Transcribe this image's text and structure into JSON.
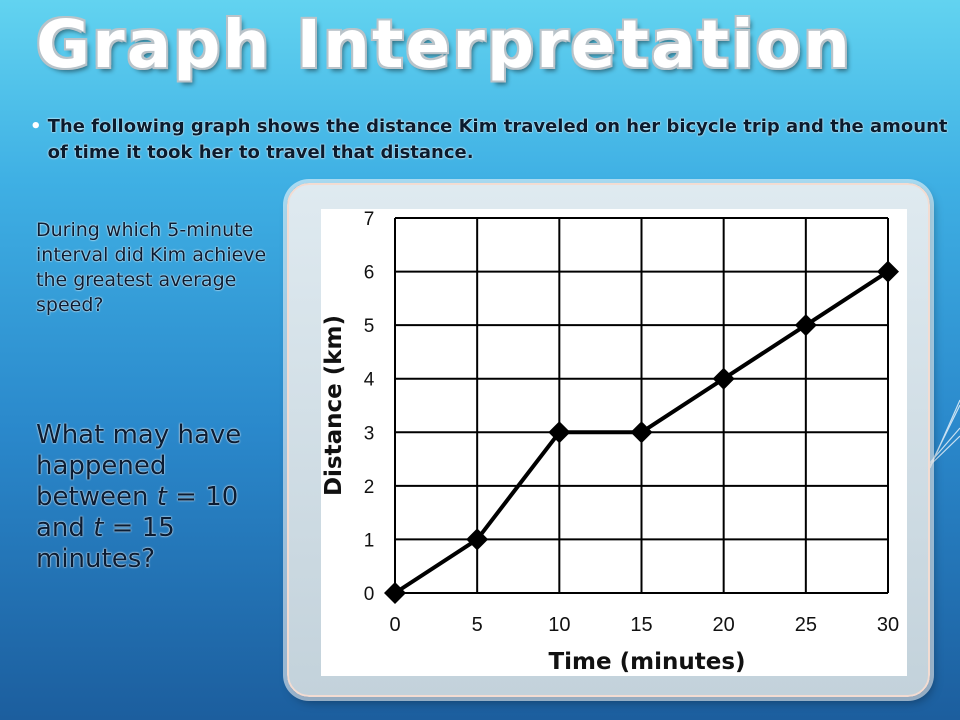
{
  "slide": {
    "title": "Graph Interpretation",
    "bullet_text": "The following graph shows the distance Kim traveled on her bicycle trip and the amount of time it took her to travel that distance.",
    "question_1": "During which 5-minute interval did Kim achieve the greatest average speed?",
    "question_2": {
      "part_a": "What may have happened between ",
      "t1": "t",
      "part_b": " = 10 and ",
      "t2": "t",
      "part_c": " = 15 minutes?"
    }
  },
  "chart_data": {
    "type": "line",
    "title": "",
    "xlabel": "Time (minutes)",
    "ylabel": "Distance (km)",
    "x": [
      0,
      5,
      10,
      15,
      20,
      25,
      30
    ],
    "series": [
      {
        "values": [
          0,
          1,
          3,
          3,
          4,
          5,
          6
        ]
      }
    ],
    "x_ticks": [
      "0",
      "5",
      "10",
      "15",
      "20",
      "25",
      "30"
    ],
    "y_ticks": [
      "0",
      "1",
      "2",
      "3",
      "4",
      "5",
      "6",
      "7"
    ],
    "xlim": [
      0,
      30
    ],
    "ylim": [
      0,
      7
    ],
    "grid": true,
    "marker": "diamond",
    "colors": {
      "line": "#000000",
      "grid": "#000000",
      "plot_bg": "#ffffff"
    }
  }
}
